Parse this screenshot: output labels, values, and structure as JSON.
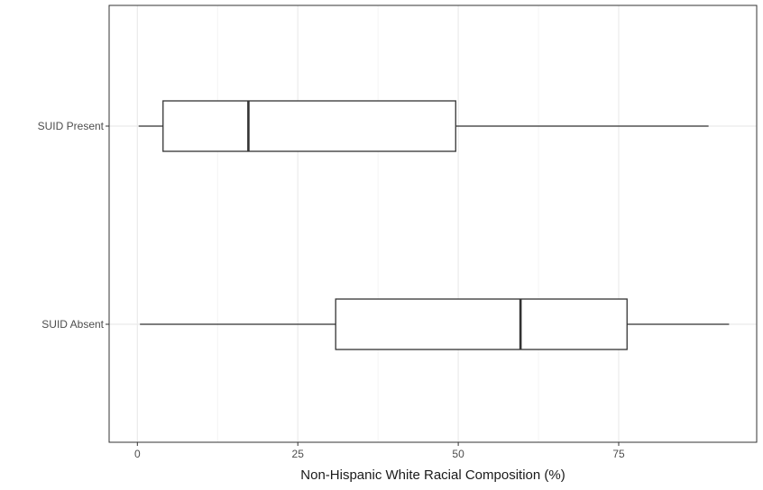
{
  "chart_data": {
    "type": "boxplot",
    "orientation": "horizontal",
    "xlabel": "Non-Hispanic White Racial Composition (%)",
    "ylabel": "",
    "xlim": [
      -4.4,
      96.5
    ],
    "x_ticks": [
      0,
      25,
      50,
      75
    ],
    "x_tick_labels": [
      "0",
      "25",
      "50",
      "75"
    ],
    "grid": true,
    "categories": [
      "SUID Present",
      "SUID Absent"
    ],
    "boxes": [
      {
        "category": "SUID Present",
        "whisker_low": 0.2,
        "q1": 4.0,
        "median": 17.3,
        "q3": 49.6,
        "whisker_high": 89.0
      },
      {
        "category": "SUID Absent",
        "whisker_low": 0.4,
        "q1": 30.9,
        "median": 59.7,
        "q3": 76.3,
        "whisker_high": 92.2
      }
    ],
    "colors": {
      "box_fill": "#ffffff",
      "box_stroke": "#333333",
      "grid_major": "#ebebeb",
      "grid_minor": "#f4f4f4",
      "panel_border": "#333333"
    }
  }
}
